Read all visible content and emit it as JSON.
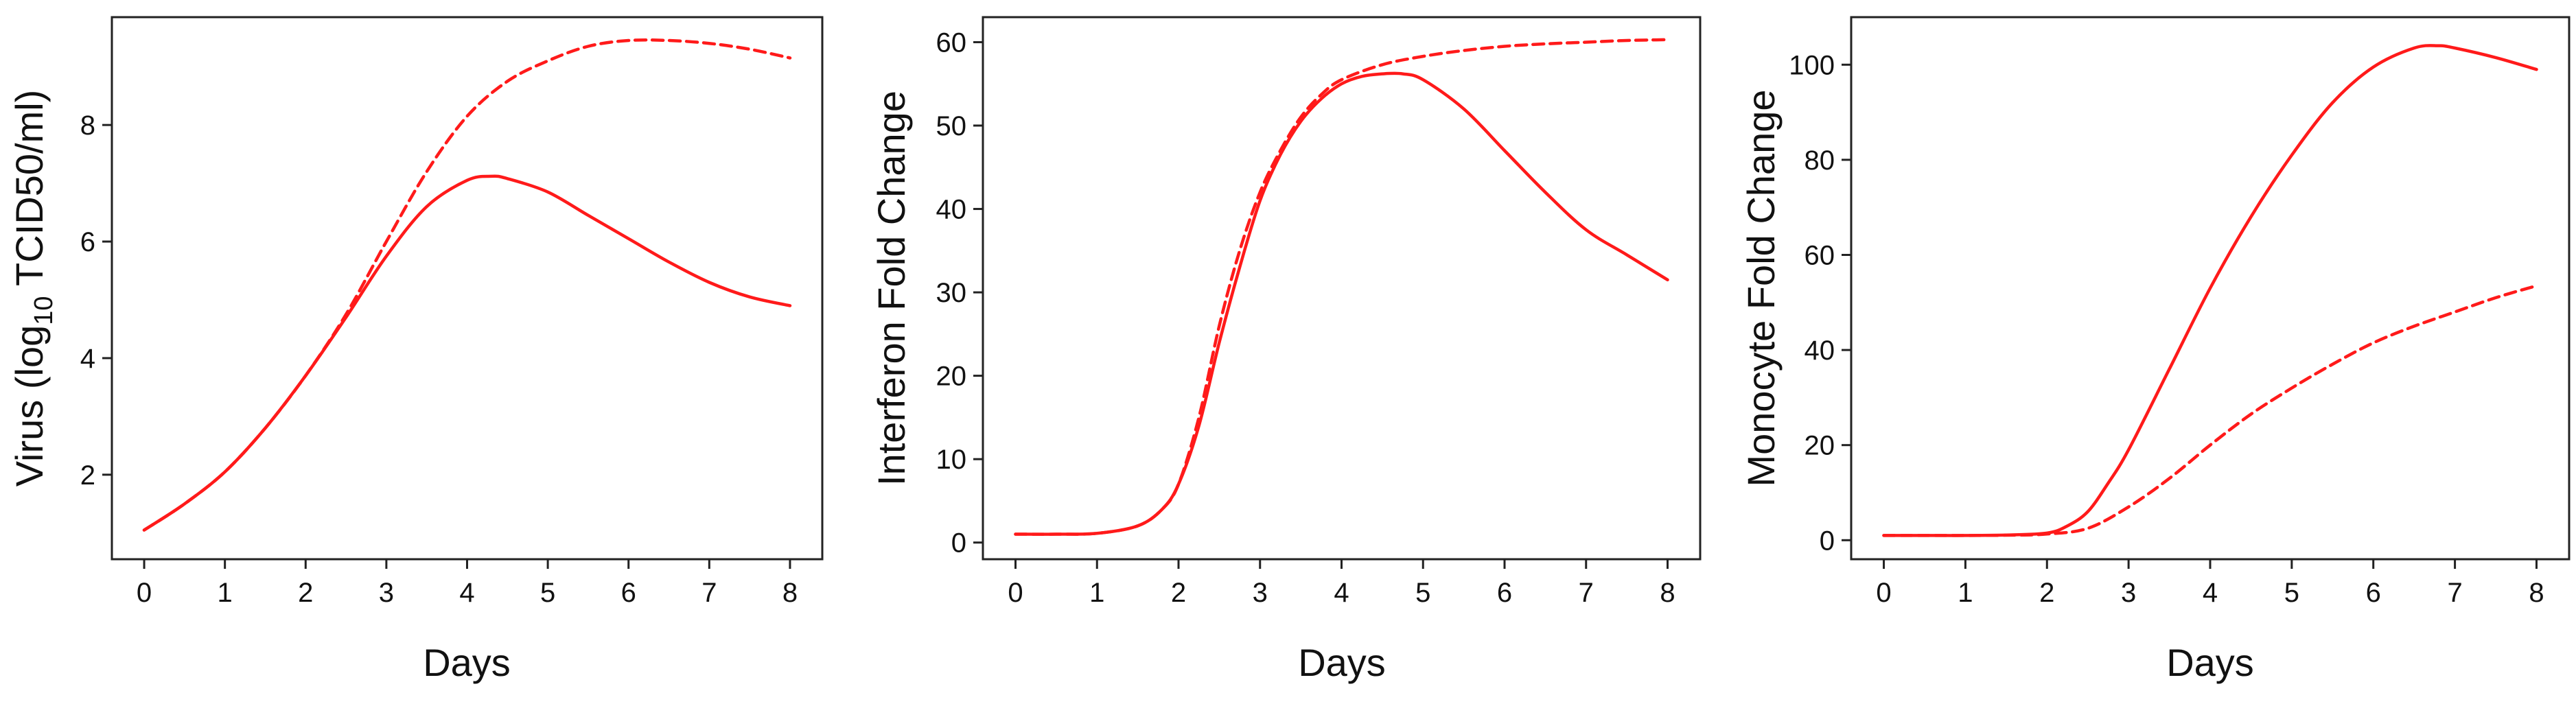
{
  "colors": {
    "curve": "#ff1a1a",
    "axis": "#222222",
    "background": "#ffffff"
  },
  "chart_data": [
    {
      "type": "line",
      "xlabel": "Days",
      "ylabel_prefix": "Virus (log",
      "ylabel_sub": "10",
      "ylabel_suffix": " TCID50/ml)",
      "xlim": [
        -0.4,
        8.4
      ],
      "ylim": [
        0.55,
        9.85
      ],
      "xticks": [
        0,
        1,
        2,
        3,
        4,
        5,
        6,
        7,
        8
      ],
      "yticks": [
        2,
        4,
        6,
        8
      ],
      "grid": false,
      "series": [
        {
          "style": "solid",
          "x": [
            0,
            0.5,
            1,
            1.5,
            2,
            2.5,
            3,
            3.5,
            4,
            4.3,
            4.5,
            5,
            5.5,
            6,
            6.5,
            7,
            7.5,
            8
          ],
          "y": [
            1.05,
            1.5,
            2.05,
            2.8,
            3.7,
            4.7,
            5.75,
            6.6,
            7.05,
            7.12,
            7.08,
            6.85,
            6.45,
            6.05,
            5.65,
            5.3,
            5.05,
            4.9
          ]
        },
        {
          "style": "dashed",
          "x": [
            0,
            0.5,
            1,
            1.5,
            2,
            2.5,
            3,
            3.5,
            4,
            4.5,
            5,
            5.5,
            6,
            6.5,
            7,
            7.5,
            8
          ],
          "y": [
            1.05,
            1.5,
            2.05,
            2.8,
            3.7,
            4.75,
            6.0,
            7.2,
            8.15,
            8.75,
            9.1,
            9.35,
            9.45,
            9.45,
            9.4,
            9.3,
            9.15
          ]
        }
      ]
    },
    {
      "type": "line",
      "xlabel": "Days",
      "ylabel": "Interferon Fold Change",
      "xlim": [
        -0.4,
        8.4
      ],
      "ylim": [
        -2,
        63
      ],
      "xticks": [
        0,
        1,
        2,
        3,
        4,
        5,
        6,
        7,
        8
      ],
      "yticks": [
        0,
        10,
        20,
        30,
        40,
        50,
        60
      ],
      "grid": false,
      "series": [
        {
          "style": "solid",
          "x": [
            0,
            0.5,
            1,
            1.5,
            1.8,
            2,
            2.25,
            2.5,
            2.75,
            3,
            3.25,
            3.5,
            3.75,
            4,
            4.25,
            4.5,
            4.75,
            5,
            5.5,
            6,
            6.5,
            7,
            7.5,
            8
          ],
          "y": [
            1,
            1,
            1.1,
            2,
            4,
            7,
            14,
            24,
            33,
            41,
            46.5,
            50.5,
            53.2,
            55,
            55.9,
            56.2,
            56.2,
            55.5,
            52,
            47,
            42,
            37.5,
            34.5,
            31.5
          ]
        },
        {
          "style": "dashed",
          "x": [
            0,
            0.5,
            1,
            1.5,
            1.8,
            2,
            2.25,
            2.5,
            2.75,
            3,
            3.25,
            3.5,
            3.75,
            4,
            4.5,
            5,
            5.5,
            6,
            6.5,
            7,
            7.5,
            8
          ],
          "y": [
            1,
            1,
            1.1,
            2,
            4,
            7,
            15,
            26,
            35,
            42,
            47,
            51,
            53.7,
            55.5,
            57.3,
            58.3,
            59.0,
            59.5,
            59.8,
            60.0,
            60.2,
            60.3
          ]
        }
      ]
    },
    {
      "type": "line",
      "xlabel": "Days",
      "ylabel": "Monocyte Fold Change",
      "xlim": [
        -0.4,
        8.4
      ],
      "ylim": [
        -4,
        110
      ],
      "xticks": [
        0,
        1,
        2,
        3,
        4,
        5,
        6,
        7,
        8
      ],
      "yticks": [
        0,
        20,
        40,
        60,
        80,
        100
      ],
      "grid": false,
      "series": [
        {
          "style": "solid",
          "x": [
            0,
            0.5,
            1,
            1.5,
            2,
            2.25,
            2.5,
            2.75,
            3,
            3.5,
            4,
            4.5,
            5,
            5.5,
            6,
            6.5,
            6.8,
            7,
            7.5,
            8
          ],
          "y": [
            1,
            1,
            1,
            1.1,
            1.5,
            3,
            6,
            12,
            19,
            36,
            53,
            68,
            81,
            92,
            99.5,
            103.5,
            104,
            103.5,
            101.5,
            99
          ]
        },
        {
          "style": "dashed",
          "x": [
            0,
            0.5,
            1,
            1.5,
            2,
            2.5,
            3,
            3.5,
            4,
            4.5,
            5,
            5.5,
            6,
            6.5,
            7,
            7.5,
            8
          ],
          "y": [
            1,
            1,
            1,
            1.05,
            1.3,
            2.5,
            7,
            13,
            20,
            26.5,
            32,
            37,
            41.5,
            45,
            48,
            51,
            53.5
          ]
        }
      ]
    }
  ]
}
